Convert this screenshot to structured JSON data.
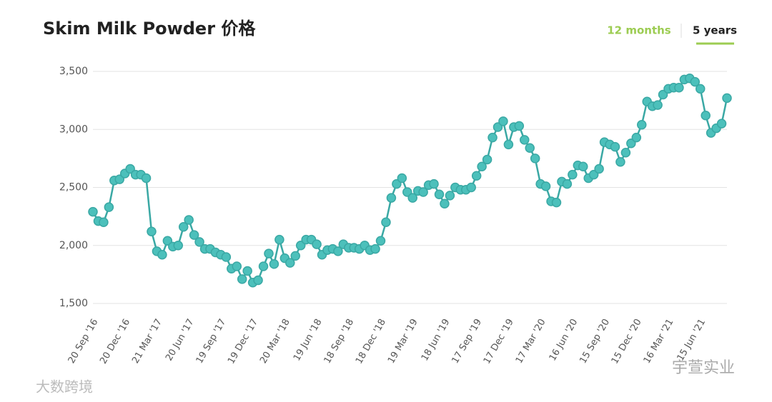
{
  "chart_data": {
    "type": "line",
    "title": "Skim Milk Powder 价格",
    "toggles": [
      "12 months",
      "5 years"
    ],
    "categories": [
      "20 Sep '16",
      null,
      null,
      null,
      null,
      null,
      "20 Dec '16",
      null,
      null,
      null,
      null,
      null,
      "21 Mar '17",
      null,
      null,
      null,
      null,
      null,
      "20 Jun '17",
      null,
      null,
      null,
      null,
      null,
      "19 Sep '17",
      null,
      null,
      null,
      null,
      null,
      "19 Dec '17",
      null,
      null,
      null,
      null,
      null,
      "20 Mar '18",
      null,
      null,
      null,
      null,
      null,
      "19 Jun '18",
      null,
      null,
      null,
      null,
      null,
      "18 Sep '18",
      null,
      null,
      null,
      null,
      null,
      "18 Dec '18",
      null,
      null,
      null,
      null,
      null,
      "19 Mar '19",
      null,
      null,
      null,
      null,
      null,
      "18 Jun '19",
      null,
      null,
      null,
      null,
      null,
      "17 Sep '19",
      null,
      null,
      null,
      null,
      null,
      "17 Dec '19",
      null,
      null,
      null,
      null,
      null,
      "17 Mar '20",
      null,
      null,
      null,
      null,
      null,
      "16 Jun '20",
      null,
      null,
      null,
      null,
      null,
      "15 Sep '20",
      null,
      null,
      null,
      null,
      null,
      "15 Dec '20",
      null,
      null,
      null,
      null,
      null,
      "16 Mar '21",
      null,
      null,
      null,
      null,
      null,
      "15 Jun '21",
      null,
      null,
      null,
      null,
      null
    ],
    "series": [
      {
        "name": "Skim Milk Powder",
        "color": "#3aa8a4",
        "values": [
          2290,
          2210,
          2200,
          2330,
          2560,
          2570,
          2620,
          2660,
          2610,
          2610,
          2580,
          2120,
          1950,
          1920,
          2040,
          1990,
          2000,
          2160,
          2220,
          2090,
          2030,
          1970,
          1970,
          1940,
          1920,
          1900,
          1800,
          1820,
          1710,
          1780,
          1680,
          1700,
          1820,
          1930,
          1840,
          2050,
          1890,
          1850,
          1910,
          2000,
          2050,
          2050,
          2010,
          1920,
          1960,
          1970,
          1950,
          2010,
          1980,
          1980,
          1970,
          2000,
          1960,
          1970,
          2040,
          2200,
          2410,
          2530,
          2580,
          2460,
          2410,
          2470,
          2460,
          2520,
          2530,
          2440,
          2360,
          2430,
          2500,
          2480,
          2480,
          2500,
          2600,
          2680,
          2740,
          2930,
          3020,
          3070,
          2870,
          3020,
          3030,
          2910,
          2840,
          2750,
          2530,
          2510,
          2380,
          2370,
          2550,
          2530,
          2610,
          2690,
          2680,
          2580,
          2610,
          2660,
          2890,
          2870,
          2850,
          2720,
          2800,
          2880,
          2930,
          3040,
          3240,
          3200,
          3210,
          3300,
          3350,
          3360,
          3360,
          3430,
          3440,
          3410,
          3350,
          3120,
          2970,
          3010,
          3050,
          3270
        ]
      }
    ],
    "ylim": [
      1500,
      3500
    ],
    "yticks": [
      {
        "value": 1500,
        "label": "1,500"
      },
      {
        "value": 2000,
        "label": "2,000"
      },
      {
        "value": 2500,
        "label": "2,500"
      },
      {
        "value": 3000,
        "label": "3,000"
      },
      {
        "value": 3500,
        "label": "3,500"
      }
    ],
    "grid": true
  },
  "watermarks": [
    "大数跨境",
    "宇萱实业"
  ]
}
